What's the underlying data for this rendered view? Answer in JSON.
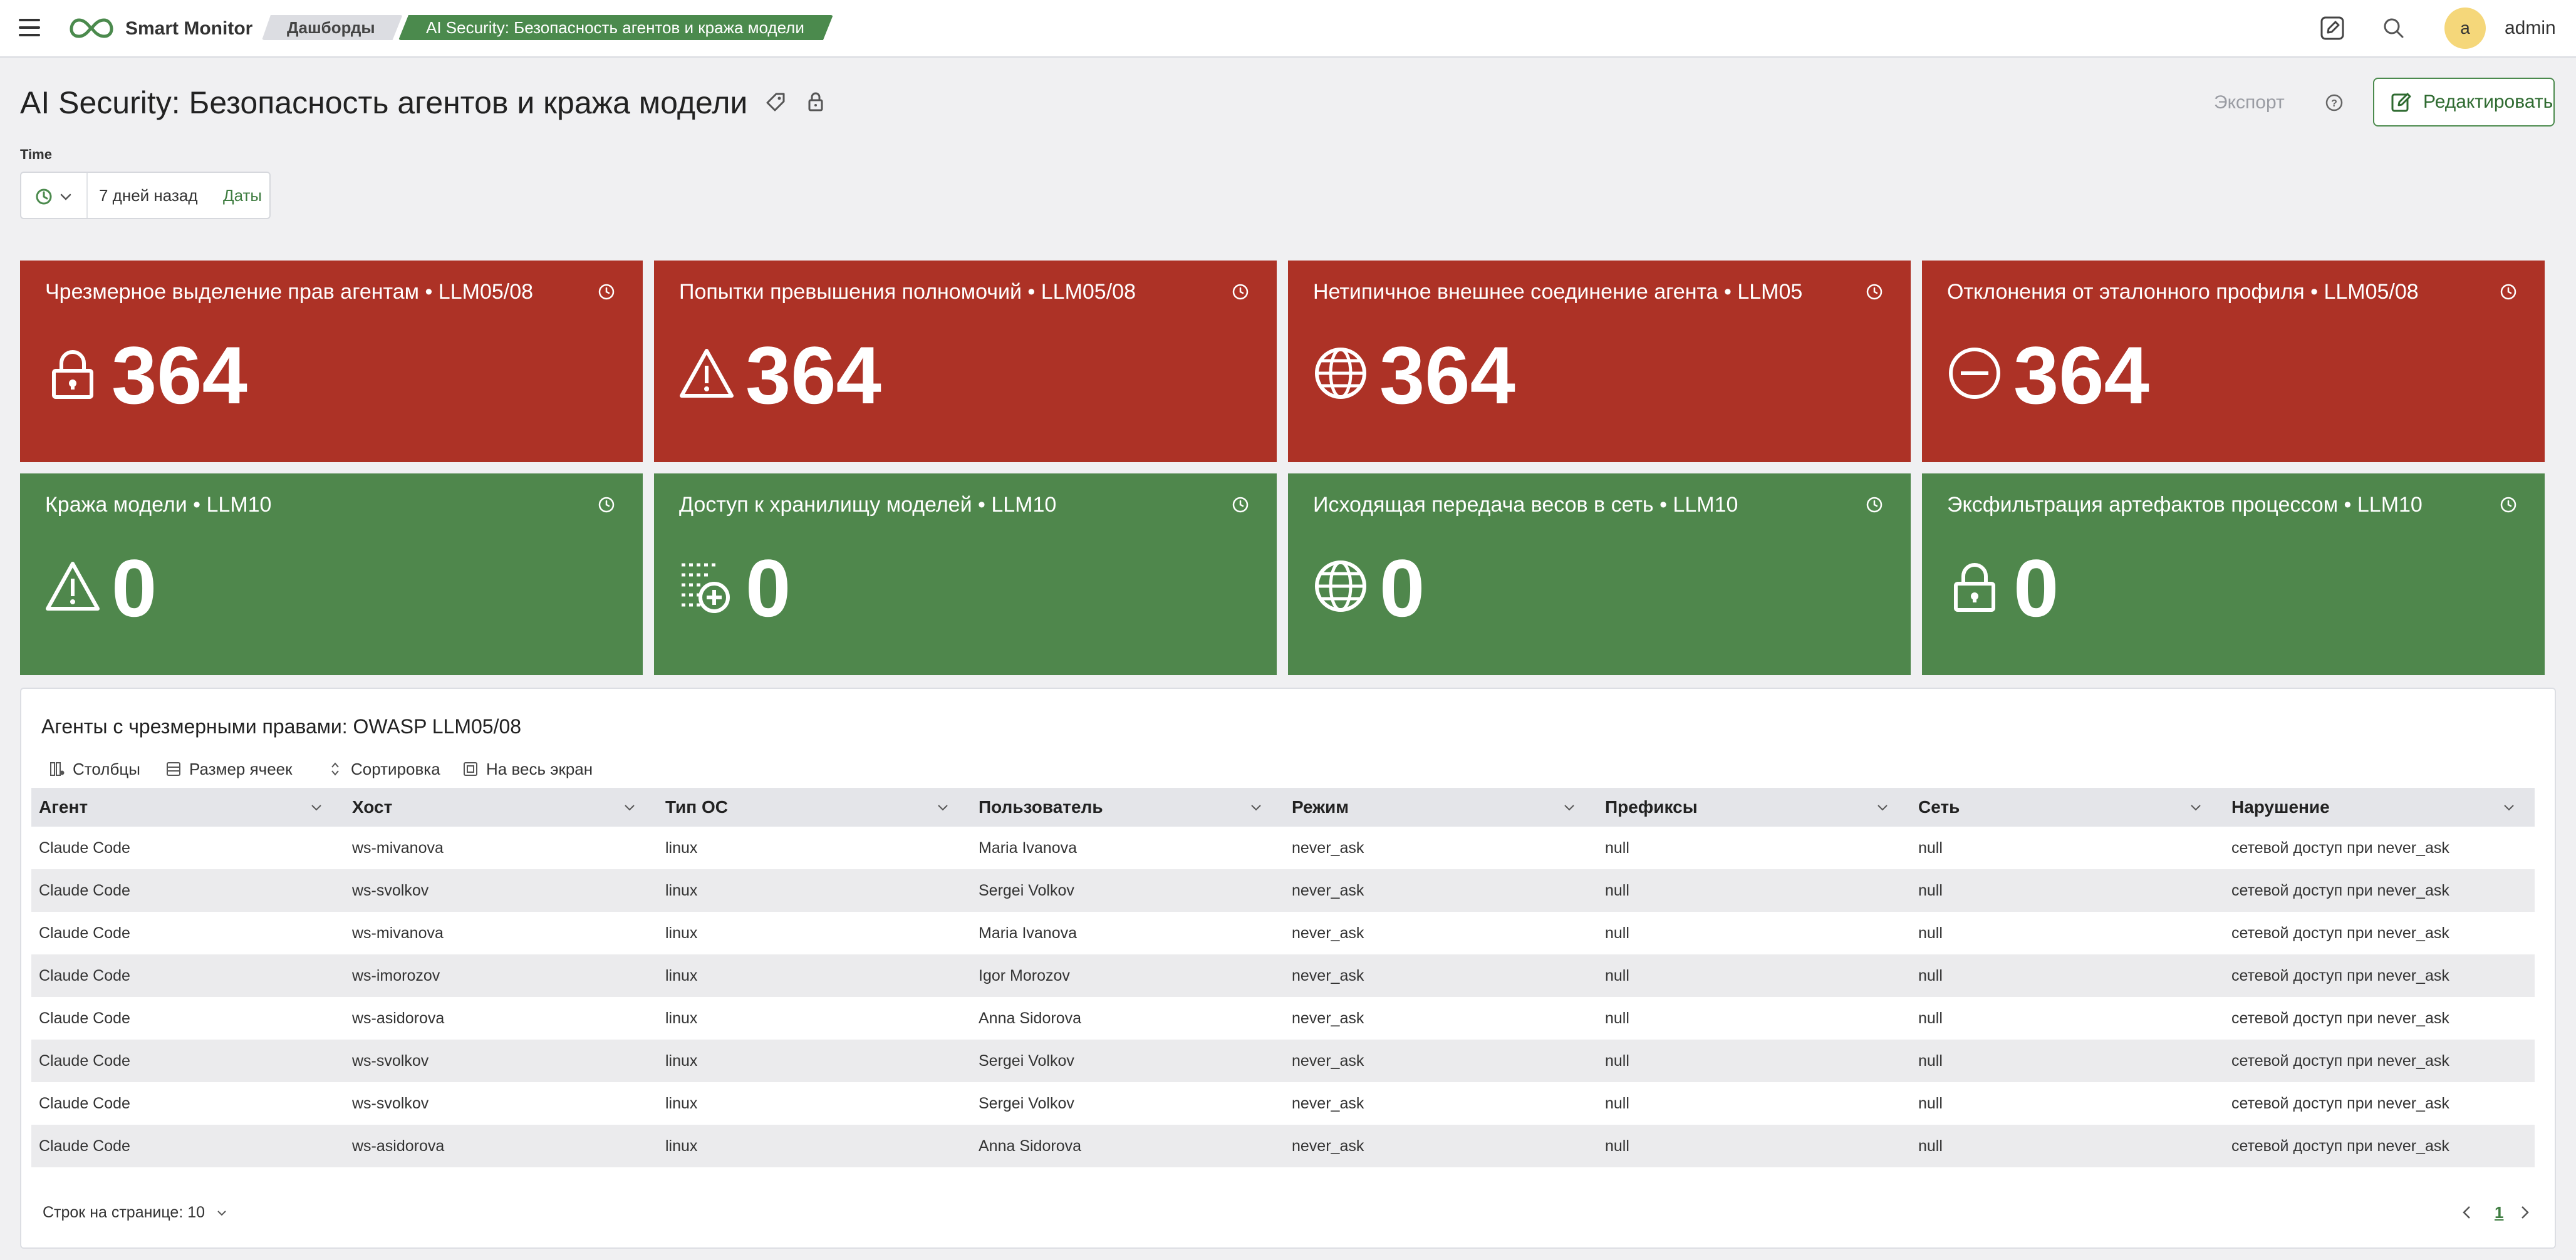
{
  "app": {
    "name": "Smart Monitor"
  },
  "breadcrumb": {
    "parent": "Дашборды",
    "current": "AI Security: Безопасность агентов и кража модели"
  },
  "user": {
    "initial": "a",
    "name": "admin"
  },
  "header": {
    "title": "AI Security: Безопасность агентов и кража модели",
    "export_label": "Экспорт",
    "edit_label": "Редактировать"
  },
  "time": {
    "label": "Time",
    "range": "7 дней назад",
    "dates_label": "Даты"
  },
  "colors": {
    "alert": "#ad3226",
    "ok": "#4f874c",
    "accent": "#4b8a4d"
  },
  "cards": [
    {
      "title": "Чрезмерное выделение прав агентам • LLM05/08",
      "value": "364",
      "icon": "lock-icon",
      "status": "red"
    },
    {
      "title": "Попытки превышения полномочий • LLM05/08",
      "value": "364",
      "icon": "warning-icon",
      "status": "red"
    },
    {
      "title": "Нетипичное внешнее соединение агента • LLM05",
      "value": "364",
      "icon": "globe-icon",
      "status": "red"
    },
    {
      "title": "Отклонения от эталонного профиля • LLM05/08",
      "value": "364",
      "icon": "minus-circle-icon",
      "status": "red"
    },
    {
      "title": "Кража модели • LLM10",
      "value": "0",
      "icon": "warning-icon",
      "status": "green"
    },
    {
      "title": "Доступ к хранилищу моделей • LLM10",
      "value": "0",
      "icon": "list-add-icon",
      "status": "green"
    },
    {
      "title": "Исходящая передача весов в сеть • LLM10",
      "value": "0",
      "icon": "globe-icon",
      "status": "green"
    },
    {
      "title": "Эксфильтрация артефактов процессом • LLM10",
      "value": "0",
      "icon": "lock-icon",
      "status": "green"
    }
  ],
  "table": {
    "title": "Агенты с чрезмерными правами: OWASP LLM05/08",
    "toolbar": {
      "columns": "Столбцы",
      "cell_size": "Размер ячеек",
      "sort": "Сортировка",
      "fullscreen": "На весь экран"
    },
    "headers": [
      "Агент",
      "Хост",
      "Тип ОС",
      "Пользователь",
      "Режим",
      "Префиксы",
      "Сеть",
      "Нарушение"
    ],
    "rows": [
      [
        "Claude Code",
        "ws-mivanova",
        "linux",
        "Maria Ivanova",
        "never_ask",
        "null",
        "null",
        "сетевой доступ при never_ask"
      ],
      [
        "Claude Code",
        "ws-svolkov",
        "linux",
        "Sergei Volkov",
        "never_ask",
        "null",
        "null",
        "сетевой доступ при never_ask"
      ],
      [
        "Claude Code",
        "ws-mivanova",
        "linux",
        "Maria Ivanova",
        "never_ask",
        "null",
        "null",
        "сетевой доступ при never_ask"
      ],
      [
        "Claude Code",
        "ws-imorozov",
        "linux",
        "Igor Morozov",
        "never_ask",
        "null",
        "null",
        "сетевой доступ при never_ask"
      ],
      [
        "Claude Code",
        "ws-asidorova",
        "linux",
        "Anna Sidorova",
        "never_ask",
        "null",
        "null",
        "сетевой доступ при never_ask"
      ],
      [
        "Claude Code",
        "ws-svolkov",
        "linux",
        "Sergei Volkov",
        "never_ask",
        "null",
        "null",
        "сетевой доступ при never_ask"
      ],
      [
        "Claude Code",
        "ws-svolkov",
        "linux",
        "Sergei Volkov",
        "never_ask",
        "null",
        "null",
        "сетевой доступ при never_ask"
      ],
      [
        "Claude Code",
        "ws-asidorova",
        "linux",
        "Anna Sidorova",
        "never_ask",
        "null",
        "null",
        "сетевой доступ при never_ask"
      ]
    ],
    "rows_per_page_label": "Строк на странице: 10",
    "current_page": "1"
  }
}
